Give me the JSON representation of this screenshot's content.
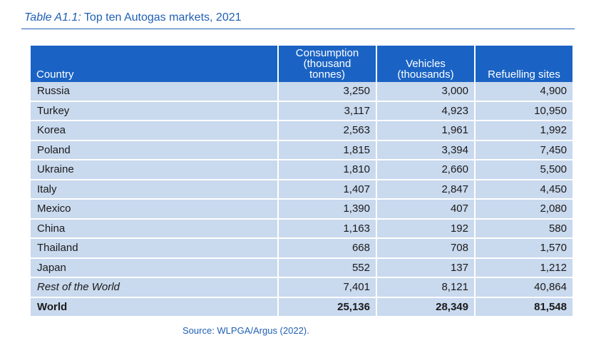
{
  "caption": {
    "label": "Table A1.1:",
    "title": "Top ten Autogas markets, 2021"
  },
  "table": {
    "headers": {
      "country": "Country",
      "consumption_line1": "Consumption",
      "consumption_line2": "(thousand tonnes)",
      "vehicles_line1": "Vehicles",
      "vehicles_line2": "(thousands)",
      "sites": "Refuelling sites"
    },
    "rows": [
      {
        "country": "Russia",
        "consumption": "3,250",
        "vehicles": "3,000",
        "sites": "4,900"
      },
      {
        "country": "Turkey",
        "consumption": "3,117",
        "vehicles": "4,923",
        "sites": "10,950"
      },
      {
        "country": "Korea",
        "consumption": "2,563",
        "vehicles": "1,961",
        "sites": "1,992"
      },
      {
        "country": "Poland",
        "consumption": "1,815",
        "vehicles": "3,394",
        "sites": "7,450"
      },
      {
        "country": "Ukraine",
        "consumption": "1,810",
        "vehicles": "2,660",
        "sites": "5,500"
      },
      {
        "country": "Italy",
        "consumption": "1,407",
        "vehicles": "2,847",
        "sites": "4,450"
      },
      {
        "country": "Mexico",
        "consumption": "1,390",
        "vehicles": "407",
        "sites": "2,080"
      },
      {
        "country": "China",
        "consumption": "1,163",
        "vehicles": "192",
        "sites": "580"
      },
      {
        "country": "Thailand",
        "consumption": "668",
        "vehicles": "708",
        "sites": "1,570"
      },
      {
        "country": "Japan",
        "consumption": "552",
        "vehicles": "137",
        "sites": "1,212"
      },
      {
        "country": "Rest of the World",
        "consumption": "7,401",
        "vehicles": "8,121",
        "sites": "40,864"
      },
      {
        "country": "World",
        "consumption": "25,136",
        "vehicles": "28,349",
        "sites": "81,548"
      }
    ]
  },
  "source": "Source: WLPGA/Argus (2022).",
  "colors": {
    "header_bg": "#1a63c4",
    "row_bg": "#c9d9ee",
    "caption_text": "#1f5fb5"
  }
}
